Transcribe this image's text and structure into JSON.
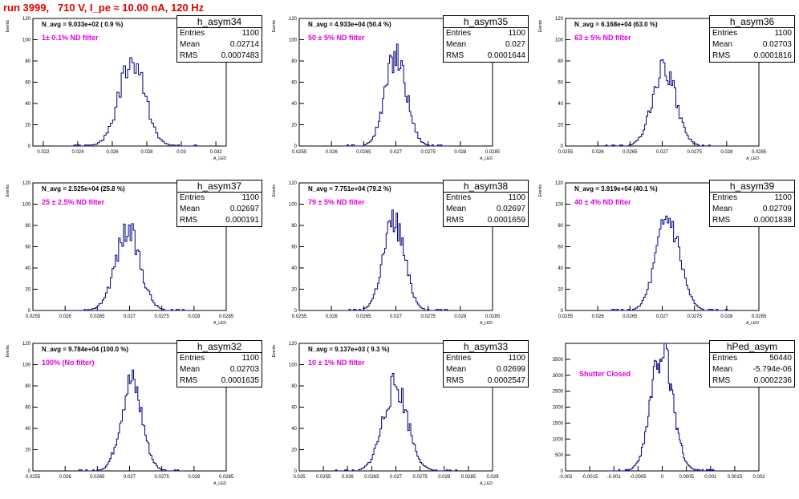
{
  "page": {
    "title": "run 3999,   710 V, I_pe ≈ 10.00 nA, 120 Hz"
  },
  "colors": {
    "title": "#e00000",
    "filter_label": "#e000e0",
    "histogram": "#00007f",
    "axis": "#000000"
  },
  "stat_labels": {
    "entries": "Entries",
    "mean": "Mean",
    "rms": "RMS"
  },
  "chart_data": [
    {
      "type": "histogram",
      "name": "h_asym34",
      "note": "N_avg = 9.033e+02 ( 0.9 %)",
      "filter": "1± 0.1% ND filter",
      "stats": {
        "entries": "1100",
        "mean": "0.02714",
        "rms": "0.0007483"
      },
      "ylabel": "Events",
      "xlabel": "A_LED",
      "xlim": [
        0.0214,
        0.0326
      ],
      "ylim": [
        0,
        120
      ],
      "xticks": [
        0.022,
        0.024,
        0.026,
        0.028,
        0.03,
        0.032
      ],
      "xtick_labels": [
        "0.022",
        "0.024",
        "0.026",
        "0.028",
        "0.03",
        "0.032"
      ],
      "yticks": [
        0,
        20,
        40,
        60,
        80,
        100,
        120
      ],
      "mean": 0.02714,
      "sigma": 0.0007483,
      "peak": 80,
      "bins": 60,
      "seed": 34
    },
    {
      "type": "histogram",
      "name": "h_asym35",
      "note": "N_avg = 4.933e+04 (50.4 %)",
      "filter": "50 ± 5% ND filter",
      "stats": {
        "entries": "1100",
        "mean": "0.027",
        "rms": "0.0001644"
      },
      "ylabel": "Events",
      "xlabel": "A_LED",
      "xlim": [
        0.0255,
        0.0285
      ],
      "ylim": [
        0,
        120
      ],
      "xticks": [
        0.0255,
        0.026,
        0.0265,
        0.027,
        0.0275,
        0.028,
        0.0285
      ],
      "xtick_labels": [
        "0.0255",
        "0.026",
        "0.0265",
        "0.027",
        "0.0275",
        "0.028",
        "0.0285"
      ],
      "yticks": [
        0,
        20,
        40,
        60,
        80,
        100,
        120
      ],
      "mean": 0.027,
      "sigma": 0.0001644,
      "peak": 86,
      "bins": 75,
      "seed": 35
    },
    {
      "type": "histogram",
      "name": "h_asym36",
      "note": "N_avg = 6.168e+04 (63.0 %)",
      "filter": "63 ± 5% ND filter",
      "stats": {
        "entries": "1100",
        "mean": "0.02703",
        "rms": "0.0001816"
      },
      "ylabel": "Events",
      "xlabel": "A_LED",
      "xlim": [
        0.0255,
        0.0285
      ],
      "ylim": [
        0,
        120
      ],
      "xticks": [
        0.0255,
        0.026,
        0.0265,
        0.027,
        0.0275,
        0.028,
        0.0285
      ],
      "xtick_labels": [
        "0.0255",
        "0.026",
        "0.0265",
        "0.027",
        "0.0275",
        "0.028",
        "0.0285"
      ],
      "yticks": [
        0,
        20,
        40,
        60,
        80,
        100,
        120
      ],
      "mean": 0.02703,
      "sigma": 0.0001816,
      "peak": 72,
      "bins": 75,
      "seed": 36
    },
    {
      "type": "histogram",
      "name": "h_asym37",
      "note": "N_avg = 2.525e+04 (25.8 %)",
      "filter": "25 ± 2.5% ND filter",
      "stats": {
        "entries": "1100",
        "mean": "0.02697",
        "rms": "0.000191"
      },
      "ylabel": "Events",
      "xlabel": "A_LED",
      "xlim": [
        0.0255,
        0.0285
      ],
      "ylim": [
        0,
        120
      ],
      "xticks": [
        0.0255,
        0.026,
        0.0265,
        0.027,
        0.0275,
        0.028,
        0.0285
      ],
      "xtick_labels": [
        "0.0255",
        "0.026",
        "0.0265",
        "0.027",
        "0.0275",
        "0.028",
        "0.0285"
      ],
      "yticks": [
        0,
        20,
        40,
        60,
        80,
        100,
        120
      ],
      "mean": 0.02697,
      "sigma": 0.000191,
      "peak": 75,
      "bins": 75,
      "seed": 37
    },
    {
      "type": "histogram",
      "name": "h_asym38",
      "note": "N_avg = 7.751e+04 (79.2 %)",
      "filter": "79 ± 5% ND filter",
      "stats": {
        "entries": "1100",
        "mean": "0.02697",
        "rms": "0.0001659"
      },
      "ylabel": "Events",
      "xlabel": "A_LED",
      "xlim": [
        0.0255,
        0.0285
      ],
      "ylim": [
        0,
        120
      ],
      "xticks": [
        0.0255,
        0.026,
        0.0265,
        0.027,
        0.0275,
        0.028,
        0.0285
      ],
      "xtick_labels": [
        "0.0255",
        "0.026",
        "0.0265",
        "0.027",
        "0.0275",
        "0.028",
        "0.0285"
      ],
      "yticks": [
        0,
        20,
        40,
        60,
        80,
        100,
        120
      ],
      "mean": 0.02697,
      "sigma": 0.0001659,
      "peak": 84,
      "bins": 75,
      "seed": 38
    },
    {
      "type": "histogram",
      "name": "h_asym39",
      "note": "N_avg = 3.919e+04 (40.1 %)",
      "filter": "40 ± 4% ND filter",
      "stats": {
        "entries": "1100",
        "mean": "0.02709",
        "rms": "0.0001838"
      },
      "ylabel": "Events",
      "xlabel": "A_LED",
      "xlim": [
        0.0255,
        0.0285
      ],
      "ylim": [
        0,
        120
      ],
      "xticks": [
        0.0255,
        0.026,
        0.0265,
        0.027,
        0.0275,
        0.028,
        0.0285
      ],
      "xtick_labels": [
        "0.0255",
        "0.026",
        "0.0265",
        "0.027",
        "0.0275",
        "0.028",
        "0.0285"
      ],
      "yticks": [
        0,
        20,
        40,
        60,
        80,
        100,
        120
      ],
      "mean": 0.02709,
      "sigma": 0.0001838,
      "peak": 84,
      "bins": 75,
      "seed": 39
    },
    {
      "type": "histogram",
      "name": "h_asym32",
      "note": "N_avg = 9.784e+04 (100.0 %)",
      "filter": "100% (No filter)",
      "stats": {
        "entries": "1100",
        "mean": "0.02703",
        "rms": "0.0001635"
      },
      "ylabel": "Events",
      "xlabel": "A_LED",
      "xlim": [
        0.0255,
        0.0285
      ],
      "ylim": [
        0,
        120
      ],
      "xticks": [
        0.0255,
        0.026,
        0.0265,
        0.027,
        0.0275,
        0.028,
        0.0285
      ],
      "xtick_labels": [
        "0.0255",
        "0.026",
        "0.0265",
        "0.027",
        "0.0275",
        "0.028",
        "0.0285"
      ],
      "yticks": [
        0,
        20,
        40,
        60,
        80,
        100,
        120
      ],
      "mean": 0.02703,
      "sigma": 0.0001635,
      "peak": 84,
      "bins": 75,
      "seed": 32
    },
    {
      "type": "histogram",
      "name": "h_asym33",
      "note": "N_avg = 9.137e+03 ( 9.3 %)",
      "filter": "10 ± 1% ND filter",
      "stats": {
        "entries": "1100",
        "mean": "0.02699",
        "rms": "0.0002547"
      },
      "ylabel": "Events",
      "xlabel": "A_LED",
      "xlim": [
        0.025,
        0.029
      ],
      "ylim": [
        0,
        120
      ],
      "xticks": [
        0.025,
        0.0255,
        0.026,
        0.0265,
        0.027,
        0.0275,
        0.028,
        0.0285,
        0.029
      ],
      "xtick_labels": [
        "0.025",
        "0.0255",
        "0.026",
        "0.0265",
        "0.027",
        "0.0275",
        "0.028",
        "0.0285",
        "0.029"
      ],
      "yticks": [
        0,
        20,
        40,
        60,
        80,
        100,
        120
      ],
      "mean": 0.02699,
      "sigma": 0.0002547,
      "peak": 80,
      "bins": 80,
      "seed": 33
    },
    {
      "type": "histogram",
      "name": "hPed_asym",
      "note": "",
      "filter": "Shutter Closed",
      "stats": {
        "entries": "50440",
        "mean": "-5.794e-06",
        "rms": "0.0002236"
      },
      "ylabel": "",
      "xlabel": "",
      "xlim": [
        -0.002,
        0.002
      ],
      "ylim": [
        0,
        4000
      ],
      "xticks": [
        -0.002,
        -0.0015,
        -0.001,
        -0.0005,
        0,
        0.0005,
        0.001,
        0.0015,
        0.002
      ],
      "xtick_labels": [
        "-0.002",
        "-0.0015",
        "-0.001",
        "-0.0005",
        "0",
        "0.0005",
        "0.001",
        "0.0015",
        "0.002"
      ],
      "yticks": [
        0,
        500,
        1000,
        1500,
        2000,
        2500,
        3000,
        3500
      ],
      "mean": -5.794e-06,
      "sigma": 0.0002236,
      "peak": 3800,
      "bins": 100,
      "seed": 99
    }
  ]
}
